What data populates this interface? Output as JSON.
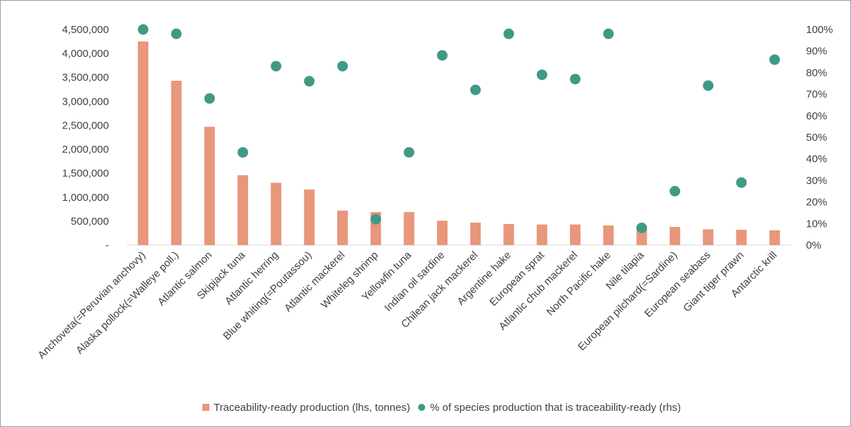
{
  "chart_data": {
    "type": "bar",
    "title": "",
    "xlabel": "",
    "ylabel": "",
    "ylim": [
      0,
      4500000
    ],
    "y2lim": [
      0,
      100
    ],
    "grid": false,
    "legend_position": "bottom",
    "categories": [
      "Anchoveta(=Peruvian anchovy)",
      "Alaska pollock(=Walleye poll.)",
      "Atlantic salmon",
      "Skipjack tuna",
      "Atlantic herring",
      "Blue whiting(=Poutassou)",
      "Atlantic mackerel",
      "Whiteleg shrimp",
      "Yellowfin tuna",
      "Indian oil sardine",
      "Chilean jack mackerel",
      "Argentine hake",
      "European sprat",
      "Atlantic chub mackerel",
      "North Pacific hake",
      "Nile tilapia",
      "European pilchard(=Sardine)",
      "European seabass",
      "Giant tiger prawn",
      "Antarctic krill"
    ],
    "series": [
      {
        "name": "Traceability-ready production (lhs, tonnes)",
        "type": "bar",
        "axis": "left",
        "color": "#e8967c",
        "values": [
          4250000,
          3430000,
          2470000,
          1460000,
          1300000,
          1160000,
          720000,
          690000,
          690000,
          510000,
          470000,
          440000,
          430000,
          430000,
          410000,
          400000,
          380000,
          330000,
          320000,
          310000
        ]
      },
      {
        "name": "% of species production that is traceability-ready (rhs)",
        "type": "scatter",
        "axis": "right",
        "color": "#3f9a85",
        "values": [
          100,
          98,
          68,
          43,
          83,
          76,
          83,
          12,
          43,
          88,
          72,
          98,
          79,
          77,
          98,
          8,
          25,
          74,
          29,
          86
        ]
      }
    ],
    "y_ticks_left": [
      "4,500,000",
      "4,000,000",
      "3,500,000",
      "3,000,000",
      "2,500,000",
      "2,000,000",
      "1,500,000",
      "1,000,000",
      "500,000",
      "-"
    ],
    "y_ticks_right": [
      "100%",
      "90%",
      "80%",
      "70%",
      "60%",
      "50%",
      "40%",
      "30%",
      "20%",
      "10%",
      "0%"
    ]
  }
}
